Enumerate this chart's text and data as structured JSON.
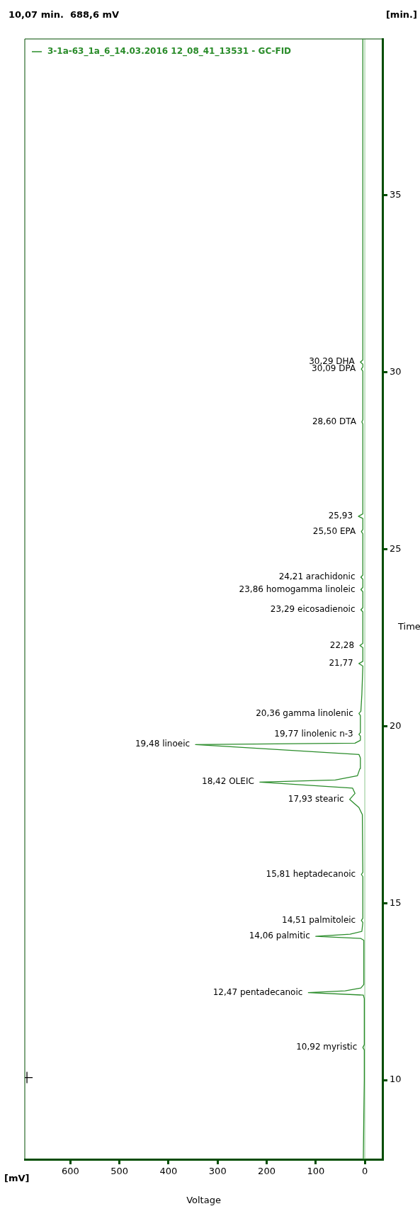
{
  "chart_data": {
    "type": "line",
    "xlabel": "Voltage",
    "ylabel": "Time",
    "xlim": [
      693,
      -36
    ],
    "ylim": [
      7.76,
      39.42
    ],
    "xticks": [
      0,
      100,
      200,
      300,
      400,
      500,
      600
    ],
    "yticks": [
      10,
      15,
      20,
      25,
      30,
      35
    ],
    "grid": false,
    "legend": "top left",
    "marker": "none",
    "ref_lines": [
      {
        "axis": "x",
        "value": 0,
        "color": "#8cc68c"
      }
    ],
    "series": [
      {
        "name": "3-1a-63_1a_6_14.03.2016 12_08_41_13531 - GC-FID",
        "color": "#2a8c2a",
        "values": [
          7.76,
          9.0,
          10.0,
          10.85,
          10.92,
          11.0,
          12.3,
          12.4,
          12.47,
          12.52,
          12.6,
          12.7,
          13.95,
          14.0,
          14.06,
          14.12,
          14.2,
          14.45,
          14.51,
          14.57,
          15.75,
          15.81,
          15.87,
          17.5,
          17.7,
          17.93,
          18.1,
          18.25,
          18.42,
          18.48,
          18.6,
          18.8,
          19.1,
          19.2,
          19.48,
          19.52,
          19.6,
          19.72,
          19.77,
          19.82,
          20.3,
          20.36,
          20.42,
          20.9,
          21.7,
          21.77,
          21.83,
          22.22,
          22.28,
          22.34,
          23.23,
          23.29,
          23.35,
          23.8,
          23.86,
          23.92,
          24.15,
          24.21,
          24.27,
          25.44,
          25.5,
          25.56,
          25.87,
          25.93,
          26.0,
          28.54,
          28.6,
          28.66,
          30.03,
          30.09,
          30.15,
          30.23,
          30.29,
          30.35,
          39.42
        ],
        "x": [
          3,
          2,
          1,
          1,
          4,
          1,
          1,
          3,
          115,
          40,
          8,
          2,
          2,
          8,
          100,
          30,
          6,
          4,
          7,
          4,
          4,
          7,
          4,
          5,
          12,
          31,
          20,
          25,
          214,
          60,
          15,
          10,
          9,
          12,
          345,
          20,
          9,
          9,
          12,
          9,
          9,
          12,
          8,
          6,
          4,
          12,
          4,
          4,
          10,
          4,
          4,
          8,
          4,
          4,
          8,
          4,
          4,
          8,
          4,
          4,
          7,
          4,
          4,
          13,
          4,
          4,
          6,
          4,
          4,
          7,
          4,
          4,
          9,
          4,
          4
        ]
      },
      {
        "color": "#000000",
        "type": "scatter",
        "marker": "cross",
        "x": [
          688.6
        ],
        "values": [
          10.07
        ]
      }
    ],
    "annotations": [
      "10,07 min.  688,6 mV",
      "[mV]",
      "[min.]",
      {
        "text": "10,92 myristic",
        "x": 4,
        "y": 10.92
      },
      {
        "text": "12,47 pentadecanoic",
        "x": 115,
        "y": 12.47
      },
      {
        "text": "14,06 palmitic",
        "x": 100,
        "y": 14.06
      },
      {
        "text": "14,51 palmitoleic",
        "x": 7,
        "y": 14.51
      },
      {
        "text": "15,81 heptadecanoic",
        "x": 7,
        "y": 15.81
      },
      {
        "text": "17,93 stearic",
        "x": 31,
        "y": 17.93
      },
      {
        "text": "18,42 OLEIC",
        "x": 214,
        "y": 18.42
      },
      {
        "text": "19,48 linoeic",
        "x": 345,
        "y": 19.48
      },
      {
        "text": "19,77 linolenic n-3",
        "x": 12,
        "y": 19.77
      },
      {
        "text": "20,36 gamma linolenic",
        "x": 12,
        "y": 20.36
      },
      {
        "text": "21,77",
        "x": 12,
        "y": 21.77
      },
      {
        "text": "22,28",
        "x": 10,
        "y": 22.28
      },
      {
        "text": "23,29 eicosadienoic",
        "x": 8,
        "y": 23.29
      },
      {
        "text": "23,86 homogamma linoleic",
        "x": 8,
        "y": 23.86
      },
      {
        "text": "24,21 arachidonic",
        "x": 8,
        "y": 24.21
      },
      {
        "text": "25,50 EPA",
        "x": 7,
        "y": 25.5
      },
      {
        "text": "25,93",
        "x": 13,
        "y": 25.93
      },
      {
        "text": "28,60 DTA",
        "x": 6,
        "y": 28.6
      },
      {
        "text": "30,09 DPA",
        "x": 7,
        "y": 30.09
      },
      {
        "text": "30,29 DHA",
        "x": 9,
        "y": 30.29
      }
    ]
  }
}
